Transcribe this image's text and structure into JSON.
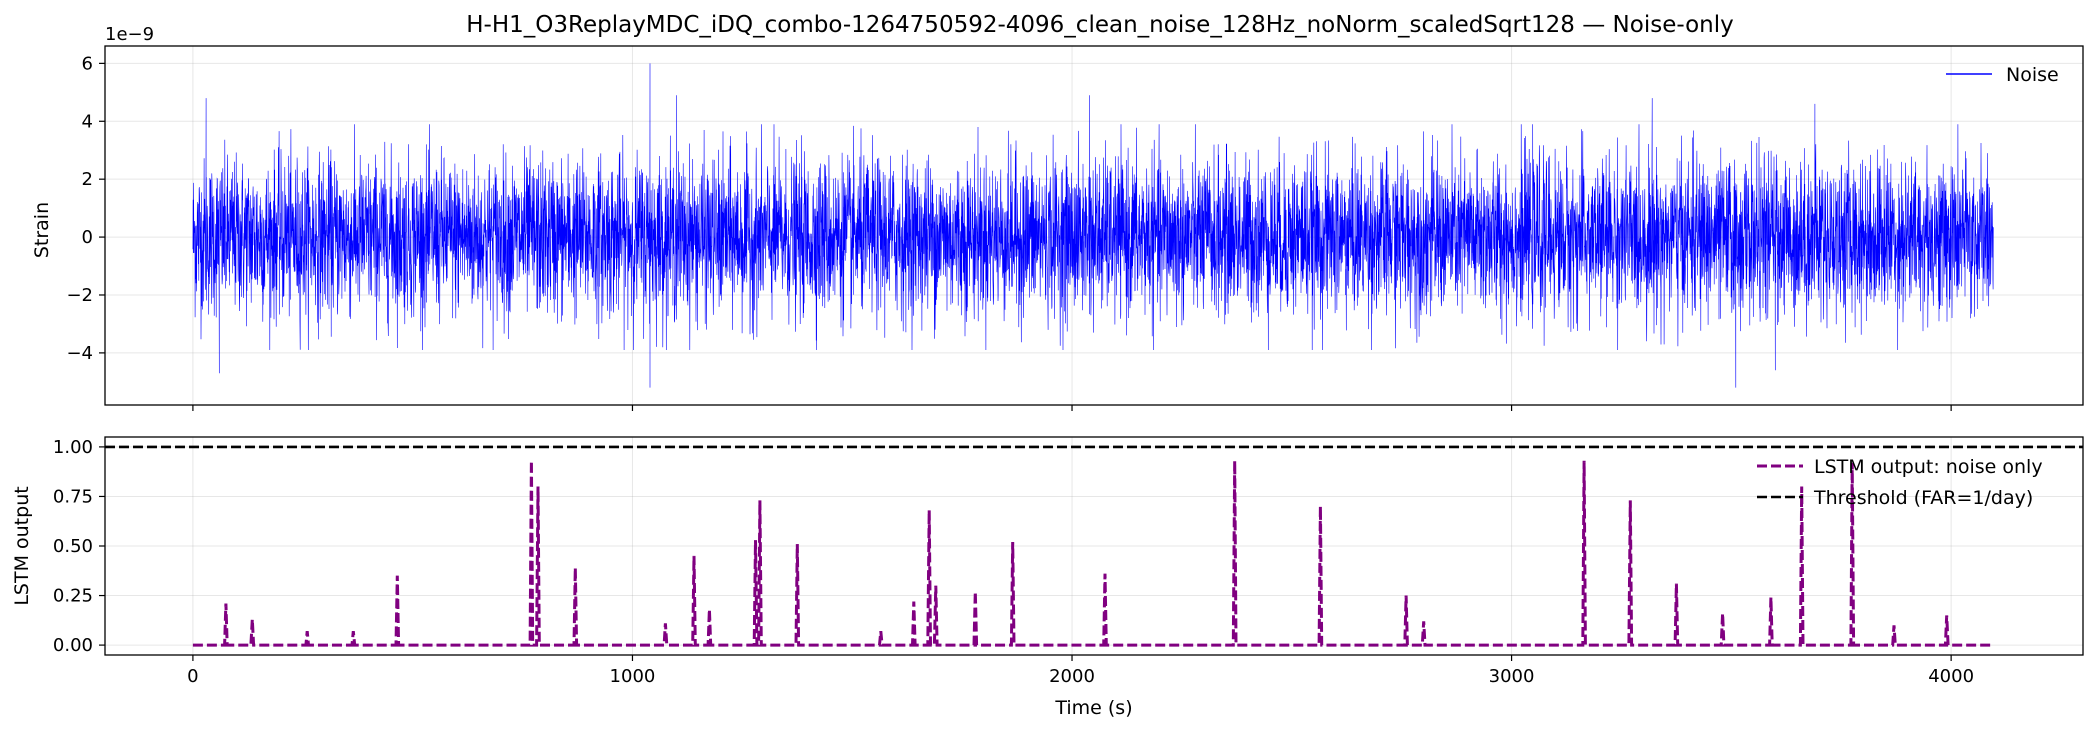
{
  "chart_data": [
    {
      "type": "line",
      "title": "H-H1_O3ReplayMDC_iDQ_combo-1264750592-4096_clean_noise_128Hz_noNorm_scaledSqrt128 — Noise-only",
      "xlabel": "",
      "ylabel": "Strain",
      "offset_label": "1e−9",
      "xlim": [
        -200,
        4300
      ],
      "ylim": [
        -5.8,
        6.6
      ],
      "x_ticks": [
        0,
        1000,
        2000,
        3000,
        4000
      ],
      "y_ticks": [
        -4,
        -2,
        0,
        2,
        4,
        6
      ],
      "grid": true,
      "legend_position": "upper-right",
      "series": [
        {
          "name": "Noise",
          "color": "#0000ff",
          "x_range": [
            0,
            4096
          ],
          "typical_envelope": [
            -3.2,
            3.2
          ],
          "peaks": [
            {
              "x": 1040,
              "y": 6.0
            },
            {
              "x": 1040,
              "y": -5.2
            },
            {
              "x": 3510,
              "y": -5.2
            },
            {
              "x": 1100,
              "y": 4.9
            },
            {
              "x": 30,
              "y": 4.8
            },
            {
              "x": 2040,
              "y": 4.9
            },
            {
              "x": 3320,
              "y": 4.8
            },
            {
              "x": 3690,
              "y": 4.6
            },
            {
              "x": 60,
              "y": -4.7
            },
            {
              "x": 3600,
              "y": -4.6
            }
          ]
        }
      ]
    },
    {
      "type": "line",
      "title": "",
      "xlabel": "Time (s)",
      "ylabel": "LSTM output",
      "xlim": [
        -200,
        4300
      ],
      "ylim": [
        -0.05,
        1.05
      ],
      "x_ticks": [
        0,
        1000,
        2000,
        3000,
        4000
      ],
      "x_tick_labels": [
        "0",
        "1000",
        "2000",
        "3000",
        "4000"
      ],
      "y_ticks": [
        0.0,
        0.25,
        0.5,
        0.75,
        1.0
      ],
      "y_tick_labels": [
        "0.00",
        "0.25",
        "0.50",
        "0.75",
        "1.00"
      ],
      "grid": true,
      "legend_position": "upper-right",
      "series": [
        {
          "name": "LSTM output: noise only",
          "color": "#800080",
          "style": "dashed",
          "x_range": [
            0,
            4096
          ],
          "peaks": [
            {
              "x": 75,
              "y": 0.21
            },
            {
              "x": 135,
              "y": 0.13
            },
            {
              "x": 260,
              "y": 0.07
            },
            {
              "x": 365,
              "y": 0.07
            },
            {
              "x": 465,
              "y": 0.35
            },
            {
              "x": 770,
              "y": 0.93
            },
            {
              "x": 785,
              "y": 0.8
            },
            {
              "x": 870,
              "y": 0.39
            },
            {
              "x": 1075,
              "y": 0.11
            },
            {
              "x": 1140,
              "y": 0.45
            },
            {
              "x": 1175,
              "y": 0.18
            },
            {
              "x": 1280,
              "y": 0.53
            },
            {
              "x": 1290,
              "y": 0.73
            },
            {
              "x": 1375,
              "y": 0.51
            },
            {
              "x": 1565,
              "y": 0.07
            },
            {
              "x": 1640,
              "y": 0.22
            },
            {
              "x": 1675,
              "y": 0.68
            },
            {
              "x": 1690,
              "y": 0.3
            },
            {
              "x": 1780,
              "y": 0.27
            },
            {
              "x": 1865,
              "y": 0.52
            },
            {
              "x": 2075,
              "y": 0.36
            },
            {
              "x": 2370,
              "y": 0.93
            },
            {
              "x": 2565,
              "y": 0.7
            },
            {
              "x": 2760,
              "y": 0.25
            },
            {
              "x": 2800,
              "y": 0.12
            },
            {
              "x": 3165,
              "y": 0.93
            },
            {
              "x": 3270,
              "y": 0.73
            },
            {
              "x": 3375,
              "y": 0.31
            },
            {
              "x": 3480,
              "y": 0.16
            },
            {
              "x": 3590,
              "y": 0.24
            },
            {
              "x": 3660,
              "y": 0.8
            },
            {
              "x": 3775,
              "y": 0.92
            },
            {
              "x": 3870,
              "y": 0.1
            },
            {
              "x": 3990,
              "y": 0.15
            }
          ]
        },
        {
          "name": "Threshold (FAR=1/day)",
          "color": "#000000",
          "style": "dashed",
          "y": 1.0
        }
      ]
    }
  ]
}
